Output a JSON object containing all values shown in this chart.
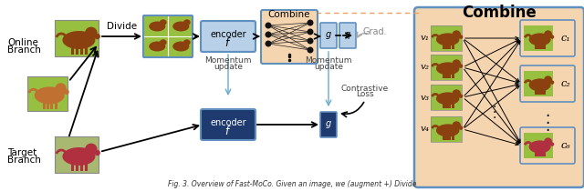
{
  "bg_color": "#ffffff",
  "caption": "Fig. 3. Overview of Fast-MoCo. Given an image, we (augment +) Divide",
  "online_branch_label": "Online\nBranch",
  "target_branch_label": "Target\nBranch",
  "divide_label": "Divide",
  "combine_label": "Combine",
  "combine_right_label": "Combine",
  "grad_label": "Grad.",
  "momentum_update1": "Momentum\nupdate",
  "momentum_update2": "Momentum\nupdate",
  "contrastive_loss": "Contrastive\nLoss",
  "v_labels": [
    "v₁",
    "v₂",
    "v₃",
    "v₄"
  ],
  "c_labels": [
    "c₁",
    "c₂",
    "c₆"
  ],
  "encoder_color_online": "#b8d0e8",
  "encoder_color_target": "#1e3a6e",
  "combine_fill": "#f5d5b0",
  "combine_border": "#6090c0",
  "g_fill_online": "#b8d0e8",
  "g_fill_target": "#1e3a6e",
  "right_bg": "#f5d5b0",
  "right_border": "#6090c0",
  "grass_color": "#90b840",
  "dog_color_brown": "#8B4010",
  "dog_color_red": "#b03040",
  "dog_color_light": "#c07030"
}
